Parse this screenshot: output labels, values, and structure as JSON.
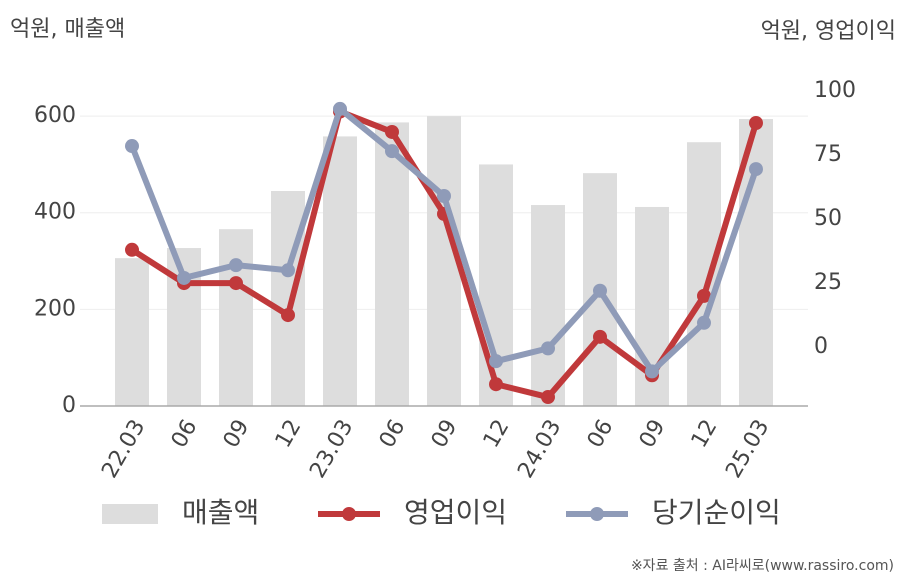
{
  "chart_data": {
    "type": "bar-line",
    "y_label": "억원, 매출액",
    "y2_label": "억원, 영업이익",
    "source": "※자료 출처 : AI라씨로(www.rassiro.com)",
    "categories": [
      "22.03",
      "06",
      "09",
      "12",
      "23.03",
      "06",
      "09",
      "12",
      "24.03",
      "06",
      "09",
      "12",
      "25.03"
    ],
    "series": [
      {
        "name": "매출액",
        "type": "bar",
        "color": "#dddddd",
        "values": [
          306,
          327,
          366,
          445,
          558,
          587,
          600,
          500,
          416,
          482,
          412,
          546,
          594
        ]
      },
      {
        "name": "영업이익",
        "type": "line",
        "axis": "y2",
        "color": "#c0393b",
        "values": [
          38,
          25,
          25,
          12.5,
          92,
          84,
          52,
          -14.5,
          -19.5,
          4,
          -11,
          20,
          87.5
        ]
      },
      {
        "name": "당기순이익",
        "type": "line",
        "axis": "y2",
        "color": "#8f9bb8",
        "values": [
          78.5,
          27,
          32,
          30,
          93,
          76.5,
          59,
          -5.5,
          -0.5,
          22,
          -9.5,
          9.5,
          69.5
        ]
      }
    ],
    "ylim": [
      0,
      652
    ],
    "yticks": [
      0,
      200,
      400,
      600
    ],
    "y2lim": [
      -23,
      100
    ],
    "y2ticks": [
      0,
      25,
      50,
      75,
      100
    ],
    "grid": true
  }
}
